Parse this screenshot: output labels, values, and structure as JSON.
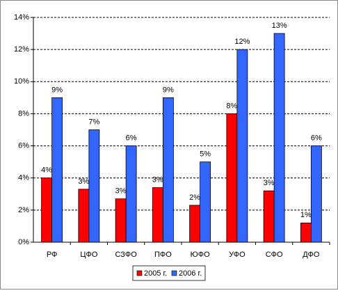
{
  "chart_data": {
    "type": "bar",
    "categories": [
      "РФ",
      "ЦФО",
      "СЗФО",
      "ПФО",
      "ЮФО",
      "УФО",
      "СФО",
      "ДФО"
    ],
    "series": [
      {
        "name": "2005 г.",
        "color": "#ff0000",
        "values": [
          4.0,
          3.3,
          2.7,
          3.4,
          2.3,
          8.0,
          3.2,
          1.2
        ],
        "value_labels": [
          "4%",
          "3%",
          "3%",
          "3%",
          "2%",
          "8%",
          "3%",
          "1%"
        ]
      },
      {
        "name": "2006 г.",
        "color": "#3366ff",
        "values": [
          9,
          7,
          6,
          9,
          5,
          12,
          13,
          6
        ],
        "value_labels": [
          "9%",
          "7%",
          "6%",
          "9%",
          "5%",
          "12%",
          "13%",
          "6%"
        ]
      }
    ],
    "ylim": [
      0,
      14
    ],
    "yticks": [
      {
        "value": 0,
        "label": "0%"
      },
      {
        "value": 2,
        "label": "2%"
      },
      {
        "value": 4,
        "label": "4%"
      },
      {
        "value": 6,
        "label": "6%"
      },
      {
        "value": 8,
        "label": "8%"
      },
      {
        "value": 10,
        "label": "10%"
      },
      {
        "value": 12,
        "label": "12%"
      },
      {
        "value": 14,
        "label": "14%"
      }
    ],
    "grid": true,
    "legend": "bottom"
  }
}
